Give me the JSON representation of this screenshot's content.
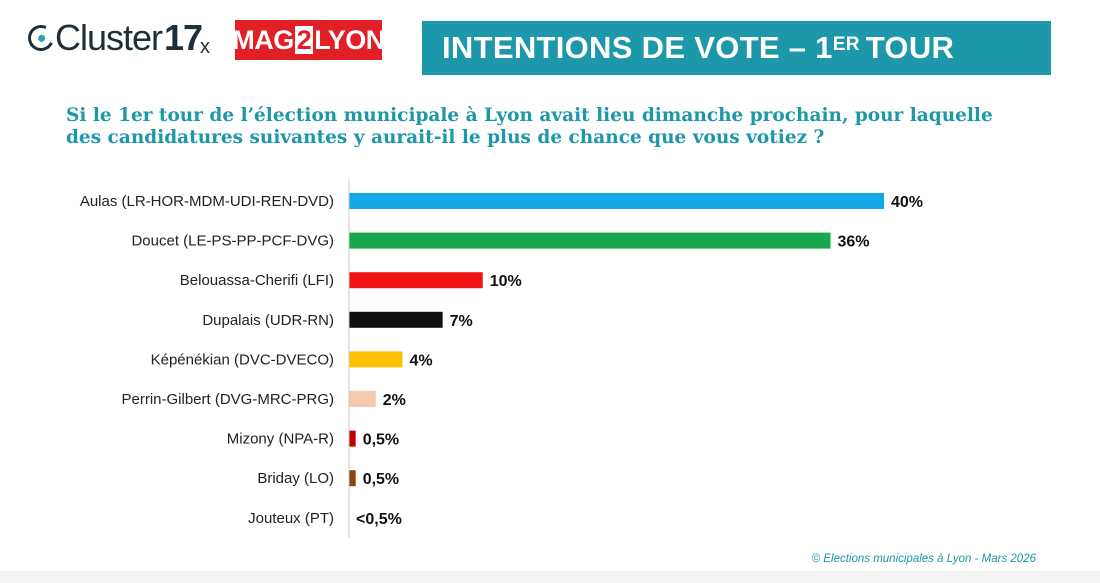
{
  "header": {
    "logo_word": "Cluster",
    "logo_number": "17",
    "times_sign": "x",
    "partner_logo_parts": [
      "MAG",
      "2",
      "LYON"
    ],
    "banner_main": "INTENTIONS DE VOTE – 1",
    "banner_sup": "ER",
    "banner_end": "TOUR",
    "banner_color": "#1d97aa"
  },
  "question": "Si le 1er tour de l’élection municipale à Lyon avait lieu dimanche prochain, pour laquelle des candidatures suivantes y aurait-il le plus de chance que vous votiez ?",
  "chart_data": {
    "type": "bar",
    "orientation": "horizontal",
    "categories": [
      "Aulas (LR-HOR-MDM-UDI-REN-DVD)",
      "Doucet (LE-PS-PP-PCF-DVG)",
      "Belouassa-Cherifi (LFI)",
      "Dupalais (UDR-RN)",
      "Képénékian (DVC-DVECO)",
      "Perrin-Gilbert (DVG-MRC-PRG)",
      "Mizony (NPA-R)",
      "Briday (LO)",
      "Jouteux (PT)"
    ],
    "values": [
      40,
      36,
      10,
      7,
      4,
      2,
      0.5,
      0.5,
      0
    ],
    "value_labels": [
      "40%",
      "36%",
      "10%",
      "7%",
      "4%",
      "2%",
      "0,5%",
      "0,5%",
      "<0,5%"
    ],
    "colors": [
      "#12a8e8",
      "#17a84b",
      "#f01414",
      "#111111",
      "#ffc000",
      "#f5c9ad",
      "#c00000",
      "#8b4513",
      "#ffffff"
    ],
    "xlim": [
      0,
      40
    ],
    "grid": false,
    "legend": "none"
  },
  "copyright": "© Elections municipales à Lyon - Mars 2026"
}
